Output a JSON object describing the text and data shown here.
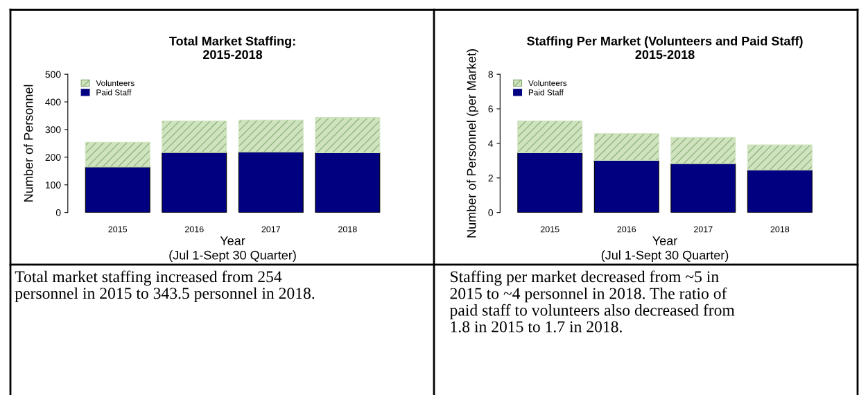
{
  "chart_data": [
    {
      "type": "bar",
      "title": "Total Market Staffing:\n2015-2018",
      "xlabel": "Year\n(Jul 1-Sept 30 Quarter)",
      "ylabel": "Number of Personnel",
      "categories": [
        "2015",
        "2016",
        "2017",
        "2018"
      ],
      "stacked": true,
      "legend": "top left",
      "grid": false,
      "series": [
        {
          "name": "Paid Staff",
          "color": "#000080",
          "values": [
            165,
            217,
            219,
            216
          ]
        },
        {
          "name": "Volunteers",
          "color": "#cfe3bf",
          "values": [
            89,
            114,
            115,
            127.5
          ]
        }
      ],
      "ylim": [
        0,
        500
      ],
      "yticks": [
        0,
        100,
        200,
        300,
        400,
        500
      ],
      "annotations": [
        "Total market staffing increased from 254\npersonnel in 2015 to 343.5 personnel in 2018."
      ]
    },
    {
      "type": "bar",
      "title": "Staffing Per Market (Volunteers and Paid Staff)\n2015-2018",
      "xlabel": "Year\n(Jul 1-Sept 30 Quarter)",
      "ylabel": "Number of Personnel (per Market)",
      "categories": [
        "2015",
        "2016",
        "2017",
        "2018"
      ],
      "stacked": true,
      "legend": "top left",
      "grid": false,
      "series": [
        {
          "name": "Paid Staff",
          "color": "#000080",
          "values": [
            3.46,
            3.02,
            2.83,
            2.46
          ]
        },
        {
          "name": "Volunteers",
          "color": "#cfe3bf",
          "values": [
            1.84,
            1.55,
            1.52,
            1.45
          ]
        }
      ],
      "ylim": [
        0,
        8
      ],
      "yticks": [
        0,
        2,
        4,
        6,
        8
      ],
      "annotations": [
        "Staffing per market decreased from ~5 in\n2015 to ~4 personnel in 2018. The ratio of\npaid staff to volunteers also decreased from\n1.8 in 2015 to 1.7 in 2018."
      ]
    }
  ]
}
